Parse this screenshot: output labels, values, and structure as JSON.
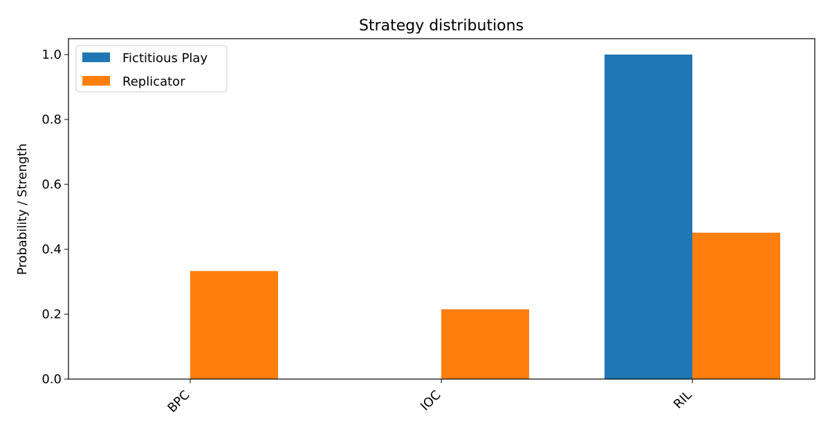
{
  "chart_data": {
    "type": "bar",
    "title": "Strategy distributions",
    "xlabel": "",
    "ylabel": "Probability / Strength",
    "categories": [
      "BPC",
      "IOC",
      "RIL"
    ],
    "series": [
      {
        "name": "Fictitious Play",
        "color": "#1f77b4",
        "values": [
          0.0,
          0.0,
          1.0
        ]
      },
      {
        "name": "Replicator",
        "color": "#ff7f0e",
        "values": [
          0.333,
          0.215,
          0.451
        ]
      }
    ],
    "ylim": [
      0,
      1.0
    ],
    "yticks": [
      "0.0",
      "0.2",
      "0.4",
      "0.6",
      "0.8",
      "1.0"
    ],
    "grid": false,
    "legend_position": "top-left"
  }
}
